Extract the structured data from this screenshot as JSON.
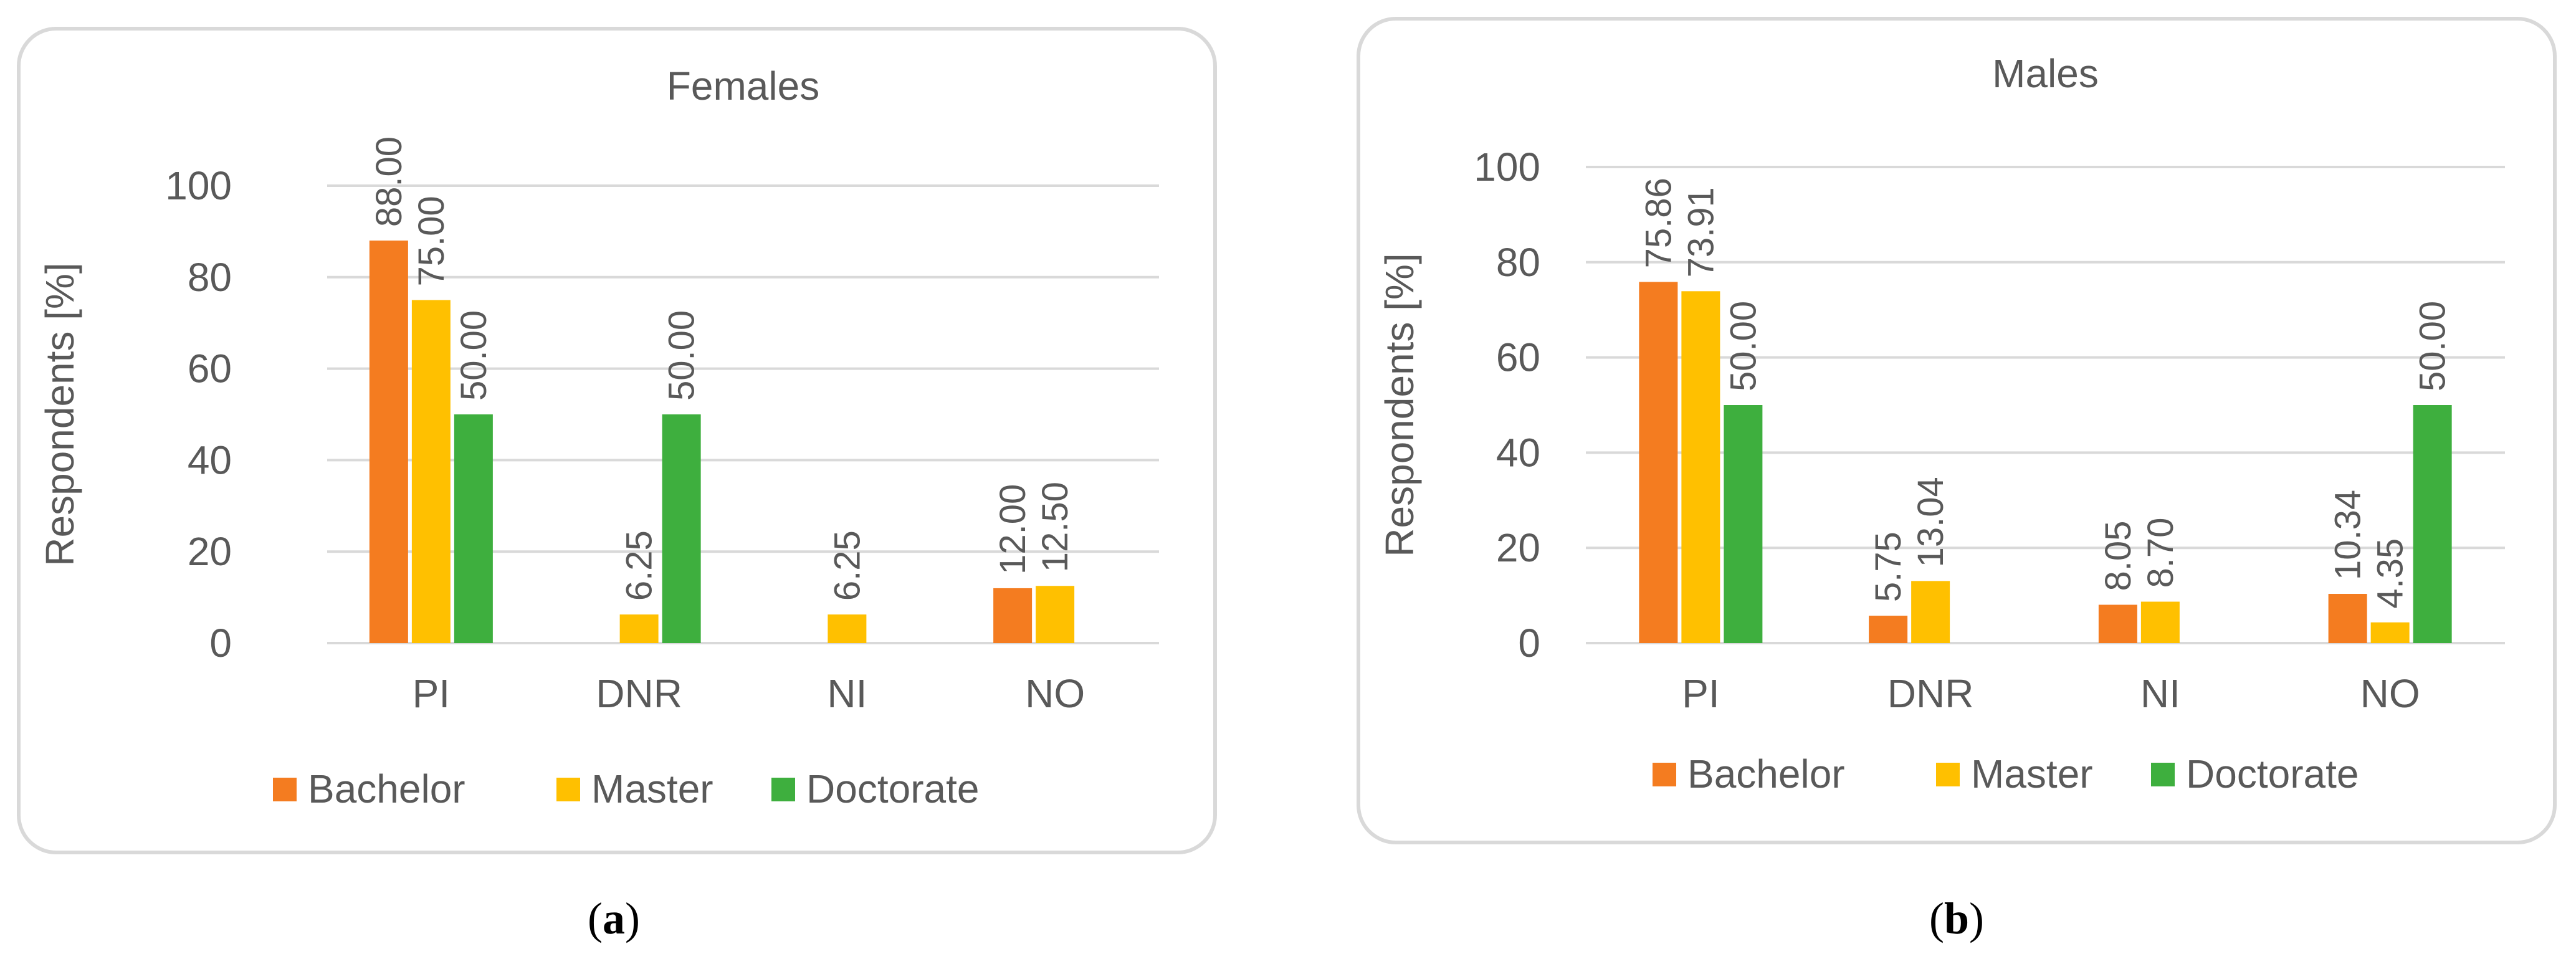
{
  "colors": {
    "Bachelor": "#F47C20",
    "Master": "#FFC000",
    "Doctorate": "#3EAF3E",
    "axis_text": "#595959",
    "gridline": "#D9D9D9",
    "frame": "#D9D9D9"
  },
  "chart_data": [
    {
      "type": "bar",
      "panel": "(a)",
      "panel_letter": "a",
      "title": "Females",
      "xlabel": "",
      "ylabel": "Respondents [%]",
      "ylim": [
        0,
        100
      ],
      "yticks": [
        "0",
        "20",
        "40",
        "60",
        "80",
        "100"
      ],
      "grid": true,
      "legend_position": "bottom",
      "categories": [
        "PI",
        "DNR",
        "NI",
        "NO"
      ],
      "series": [
        {
          "name": "Bachelor",
          "values": [
            88.0,
            null,
            null,
            12.0
          ],
          "labels": [
            "88.00",
            "",
            "",
            "12.00"
          ]
        },
        {
          "name": "Master",
          "values": [
            75.0,
            6.25,
            6.25,
            12.5
          ],
          "labels": [
            "75.00",
            "6.25",
            "6.25",
            "12.50"
          ]
        },
        {
          "name": "Doctorate",
          "values": [
            50.0,
            50.0,
            null,
            null
          ],
          "labels": [
            "50.00",
            "50.00",
            "",
            ""
          ]
        }
      ]
    },
    {
      "type": "bar",
      "panel": "(b)",
      "panel_letter": "b",
      "title": "Males",
      "xlabel": "",
      "ylabel": "Respondents [%]",
      "ylim": [
        0,
        100
      ],
      "yticks": [
        "0",
        "20",
        "40",
        "60",
        "80",
        "100"
      ],
      "grid": true,
      "legend_position": "bottom",
      "categories": [
        "PI",
        "DNR",
        "NI",
        "NO"
      ],
      "series": [
        {
          "name": "Bachelor",
          "values": [
            75.86,
            5.75,
            8.05,
            10.34
          ],
          "labels": [
            "75.86",
            "5.75",
            "8.05",
            "10.34"
          ]
        },
        {
          "name": "Master",
          "values": [
            73.91,
            13.04,
            8.7,
            4.35
          ],
          "labels": [
            "73.91",
            "13.04",
            "8.70",
            "4.35"
          ]
        },
        {
          "name": "Doctorate",
          "values": [
            50.0,
            null,
            null,
            50.0
          ],
          "labels": [
            "50.00",
            "",
            "",
            "50.00"
          ]
        }
      ]
    }
  ]
}
